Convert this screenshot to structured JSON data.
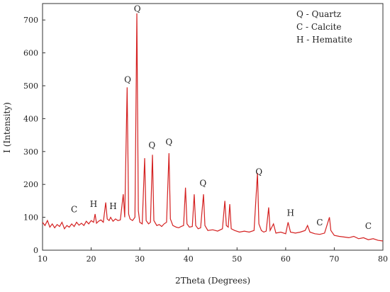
{
  "chart_data": {
    "type": "line",
    "xlabel": "2Theta (Degrees)",
    "ylabel": "I (Intensity)",
    "xlim": [
      10,
      80
    ],
    "ylim": [
      0,
      750
    ],
    "xticks": [
      10,
      20,
      30,
      40,
      50,
      60,
      70,
      80
    ],
    "yticks": [
      0,
      100,
      200,
      300,
      400,
      500,
      600,
      700
    ],
    "legend_text": [
      "Q - Quartz",
      "C - Calcite",
      "H - Hematite"
    ],
    "annotations": [
      {
        "text": "Q",
        "x": 29.5,
        "y": 725
      },
      {
        "text": "Q",
        "x": 27.5,
        "y": 510
      },
      {
        "text": "Q",
        "x": 32.5,
        "y": 310
      },
      {
        "text": "Q",
        "x": 36.0,
        "y": 320
      },
      {
        "text": "Q",
        "x": 43.0,
        "y": 195
      },
      {
        "text": "Q",
        "x": 54.5,
        "y": 230
      },
      {
        "text": "C",
        "x": 16.5,
        "y": 115
      },
      {
        "text": "H",
        "x": 20.5,
        "y": 132
      },
      {
        "text": "H",
        "x": 24.5,
        "y": 125
      },
      {
        "text": "H",
        "x": 61.0,
        "y": 105
      },
      {
        "text": "C",
        "x": 67.0,
        "y": 75
      },
      {
        "text": "C",
        "x": 77.0,
        "y": 65
      }
    ],
    "series": [
      {
        "color": "#d42020",
        "x": [
          10,
          10.5,
          11,
          11.5,
          12,
          12.5,
          13,
          13.5,
          14,
          14.5,
          15,
          15.5,
          16,
          16.5,
          17,
          17.5,
          18,
          18.5,
          19,
          19.5,
          20,
          20.5,
          20.8,
          21.1,
          21.5,
          22,
          22.5,
          23,
          23.3,
          23.7,
          24,
          24.5,
          25,
          25.5,
          26,
          26.6,
          26.9,
          27.4,
          27.7,
          28,
          28.5,
          29,
          29.4,
          29.7,
          30,
          30.5,
          31,
          31.3,
          31.8,
          32.2,
          32.6,
          32.9,
          33.5,
          34,
          34.5,
          35,
          35.5,
          36,
          36.3,
          36.8,
          37.5,
          38,
          38.5,
          39,
          39.4,
          39.7,
          40.2,
          40.8,
          41.2,
          41.5,
          42,
          42.5,
          43.1,
          43.4,
          44,
          45,
          46,
          47,
          47.5,
          47.8,
          48.2,
          48.5,
          48.8,
          49.5,
          50.5,
          51.5,
          52.5,
          53.5,
          54.2,
          54.5,
          55,
          55.5,
          56,
          56.5,
          56.8,
          57.5,
          58,
          59,
          60,
          60.5,
          61,
          62,
          63,
          64,
          64.5,
          65,
          66,
          67,
          68,
          69,
          69.3,
          70,
          71,
          72,
          73,
          74,
          75,
          76,
          77,
          78,
          79,
          80
        ],
        "values": [
          85,
          75,
          90,
          70,
          80,
          68,
          78,
          72,
          85,
          65,
          75,
          70,
          80,
          72,
          85,
          76,
          82,
          75,
          88,
          80,
          90,
          85,
          110,
          82,
          88,
          92,
          85,
          145,
          95,
          90,
          100,
          88,
          95,
          90,
          92,
          170,
          100,
          495,
          110,
          95,
          90,
          100,
          720,
          120,
          85,
          80,
          280,
          90,
          80,
          85,
          290,
          90,
          75,
          78,
          72,
          80,
          85,
          295,
          95,
          75,
          70,
          68,
          72,
          75,
          190,
          80,
          70,
          72,
          170,
          75,
          65,
          68,
          170,
          75,
          60,
          62,
          58,
          65,
          150,
          75,
          70,
          140,
          65,
          60,
          55,
          58,
          55,
          60,
          235,
          80,
          60,
          55,
          58,
          130,
          60,
          80,
          52,
          55,
          50,
          85,
          55,
          52,
          55,
          60,
          75,
          55,
          50,
          48,
          52,
          100,
          60,
          45,
          42,
          40,
          38,
          42,
          35,
          38,
          32,
          35,
          30,
          28
        ]
      }
    ]
  }
}
